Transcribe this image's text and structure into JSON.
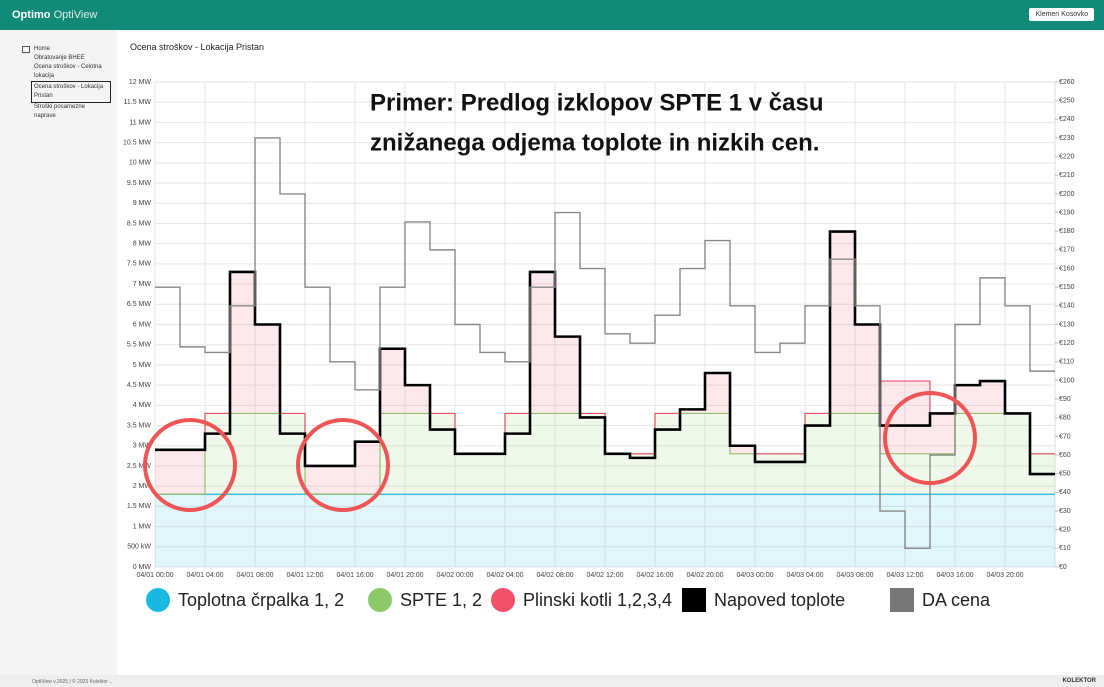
{
  "app": {
    "brand": "Optimo",
    "product": "OptiView",
    "user": "Klemen Kosovko"
  },
  "sidebar": {
    "items": [
      "Home",
      "Obratovanje BHEE",
      "Ocena stroškov - Celotna lokacija",
      "Ocena stroškov - Lokacija Pristan",
      "Stroški posamezne naprave"
    ]
  },
  "footer": {
    "left": "OptiView v.2025 | © 2025 Kolektor ..",
    "right": "KOLEKTOR"
  },
  "chart_data": {
    "type": "stacked-step",
    "title": "Ocena stroškov - Lokacija Pristan",
    "annotation": [
      "Primer: Predlog izklopov SPTE 1 v času",
      "znižanega odjema toplote in nizkih cen."
    ],
    "x": [
      "04/01 00:00",
      null,
      "04/01 04:00",
      null,
      "04/01 08:00",
      null,
      "04/01 12:00",
      null,
      "04/01 16:00",
      null,
      "04/01 20:00",
      null,
      "04/02 00:00",
      null,
      "04/02 04:00",
      null,
      "04/02 08:00",
      null,
      "04/02 12:00",
      null,
      "04/02 16:00",
      null,
      "04/02 20:00",
      null,
      "04/03 00:00",
      null,
      "04/03 04:00",
      null,
      "04/03 08:00",
      null,
      "04/03 12:00",
      null,
      "04/03 16:00",
      null,
      "04/03 20:00",
      null
    ],
    "ylim": [
      0,
      12
    ],
    "yticks": [
      {
        "value": 0,
        "label": "0 MW"
      },
      {
        "value": 0.5,
        "label": "500 kW"
      },
      {
        "value": 1,
        "label": "1 MW"
      },
      {
        "value": 1.5,
        "label": "1.5 MW"
      },
      {
        "value": 2,
        "label": "2 MW"
      },
      {
        "value": 2.5,
        "label": "2.5 MW"
      },
      {
        "value": 3,
        "label": "3 MW"
      },
      {
        "value": 3.5,
        "label": "3.5 MW"
      },
      {
        "value": 4,
        "label": "4 MW"
      },
      {
        "value": 4.5,
        "label": "4.5 MW"
      },
      {
        "value": 5,
        "label": "5 MW"
      },
      {
        "value": 5.5,
        "label": "5.5 MW"
      },
      {
        "value": 6,
        "label": "6 MW"
      },
      {
        "value": 6.5,
        "label": "6.5 MW"
      },
      {
        "value": 7,
        "label": "7 MW"
      },
      {
        "value": 7.5,
        "label": "7.5 MW"
      },
      {
        "value": 8,
        "label": "8 MW"
      },
      {
        "value": 8.5,
        "label": "8.5 MW"
      },
      {
        "value": 9,
        "label": "9 MW"
      },
      {
        "value": 9.5,
        "label": "9.5 MW"
      },
      {
        "value": 10,
        "label": "10 MW"
      },
      {
        "value": 10.5,
        "label": "10.5 MW"
      },
      {
        "value": 11,
        "label": "11 MW"
      },
      {
        "value": 11.5,
        "label": "11.5 MW"
      },
      {
        "value": 12,
        "label": "12 MW"
      }
    ],
    "y2lim": [
      0,
      260
    ],
    "y2ticks": [
      {
        "value": 0,
        "label": "€0"
      },
      {
        "value": 10,
        "label": "€10"
      },
      {
        "value": 20,
        "label": "€20"
      },
      {
        "value": 30,
        "label": "€30"
      },
      {
        "value": 40,
        "label": "€40"
      },
      {
        "value": 50,
        "label": "€50"
      },
      {
        "value": 60,
        "label": "€60"
      },
      {
        "value": 70,
        "label": "€70"
      },
      {
        "value": 80,
        "label": "€80"
      },
      {
        "value": 90,
        "label": "€90"
      },
      {
        "value": 100,
        "label": "€100"
      },
      {
        "value": 110,
        "label": "€110"
      },
      {
        "value": 120,
        "label": "€120"
      },
      {
        "value": 130,
        "label": "€130"
      },
      {
        "value": 140,
        "label": "€140"
      },
      {
        "value": 150,
        "label": "€150"
      },
      {
        "value": 160,
        "label": "€160"
      },
      {
        "value": 170,
        "label": "€170"
      },
      {
        "value": 180,
        "label": "€180"
      },
      {
        "value": 190,
        "label": "€190"
      },
      {
        "value": 200,
        "label": "€200"
      },
      {
        "value": 210,
        "label": "€210"
      },
      {
        "value": 220,
        "label": "€220"
      },
      {
        "value": 230,
        "label": "€230"
      },
      {
        "value": 240,
        "label": "€240"
      },
      {
        "value": 250,
        "label": "€250"
      },
      {
        "value": 260,
        "label": "€260"
      }
    ],
    "grid": true,
    "legend": "bottom",
    "series": [
      {
        "name": "Toplotna črpalka 1, 2",
        "color": "#1ab8e0",
        "stack": true,
        "values": [
          1.8,
          1.8,
          1.8,
          1.8,
          1.8,
          1.8,
          1.8,
          1.8,
          1.8,
          1.8,
          1.8,
          1.8,
          1.8,
          1.8,
          1.8,
          1.8,
          1.8,
          1.8,
          1.8,
          1.8,
          1.8,
          1.8,
          1.8,
          1.8,
          1.8,
          1.8,
          1.8,
          1.8,
          1.8,
          1.8,
          1.8,
          1.8,
          1.8,
          1.8,
          1.8,
          1.8
        ]
      },
      {
        "name": "SPTE 1, 2",
        "color": "#8cc86a",
        "stack": true,
        "values": [
          0,
          0,
          2,
          2,
          2,
          2,
          0,
          0,
          0,
          2,
          2,
          2,
          1,
          1,
          2,
          2,
          2,
          2,
          1,
          1,
          2,
          2,
          2,
          1,
          1,
          1,
          2,
          2,
          2,
          1,
          1,
          1,
          2,
          2,
          2,
          1
        ]
      },
      {
        "name": "Plinski kotli 1,2,3,4",
        "color": "#f0506a",
        "stack": true,
        "values": [
          1.1,
          1.1,
          0,
          3.5,
          2.2,
          0,
          0.7,
          0.7,
          1.3,
          1.6,
          0.7,
          0,
          0,
          0,
          0,
          3.5,
          1.9,
          0,
          0,
          0,
          0,
          0.1,
          1.0,
          0.2,
          0,
          0,
          0,
          4.5,
          2.2,
          1.8,
          1.8,
          1.0,
          0.7,
          0.8,
          0,
          0
        ]
      },
      {
        "name": "Napoved toplote",
        "color": "#000000",
        "stack": false,
        "values": [
          2.9,
          2.9,
          3.3,
          7.3,
          6.0,
          3.3,
          2.5,
          2.5,
          3.1,
          5.4,
          4.5,
          3.4,
          2.8,
          2.8,
          3.3,
          7.3,
          5.7,
          3.7,
          2.8,
          2.7,
          3.4,
          3.9,
          4.8,
          3.0,
          2.6,
          2.6,
          3.5,
          8.3,
          6.0,
          3.5,
          3.5,
          3.8,
          4.5,
          4.6,
          3.8,
          2.3
        ]
      },
      {
        "name": "DA cena",
        "color": "#888888",
        "stack": false,
        "axis": "y2",
        "values": [
          150,
          118,
          115,
          140,
          230,
          200,
          150,
          110,
          95,
          150,
          185,
          170,
          130,
          115,
          110,
          150,
          190,
          160,
          125,
          120,
          135,
          160,
          175,
          140,
          115,
          120,
          140,
          165,
          140,
          30,
          10,
          60,
          130,
          155,
          140,
          105
        ]
      }
    ]
  }
}
